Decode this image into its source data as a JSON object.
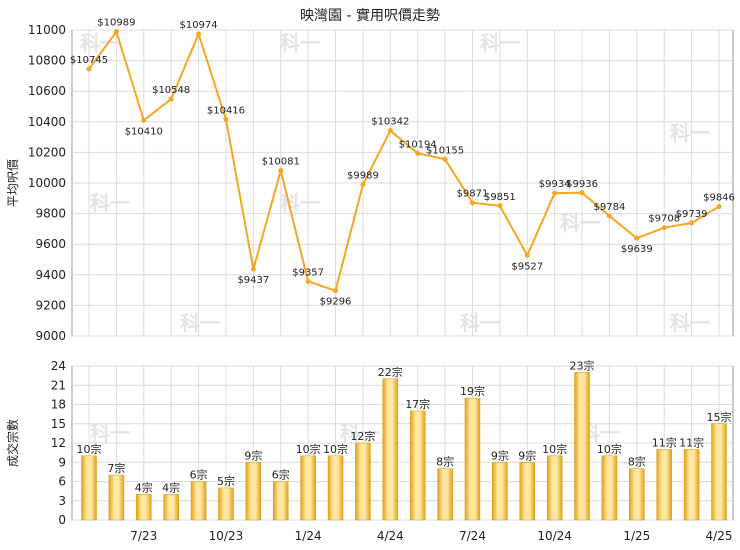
{
  "title": "映灣園 - 實用呎價走勢",
  "colors": {
    "line": "#f5a623",
    "bar_light": "#fde7a3",
    "bar_dark": "#e6a010",
    "grid": "#dcdcdc",
    "axis": "#999999"
  },
  "watermark": "科一",
  "chart_data": [
    {
      "type": "line",
      "ylabel": "平均呎價",
      "ylim": [
        9000,
        11000
      ],
      "yticks": [
        9000,
        9200,
        9400,
        9600,
        9800,
        10000,
        10200,
        10400,
        10600,
        10800,
        11000
      ],
      "values": [
        10745,
        10989,
        10410,
        10548,
        10974,
        10416,
        9437,
        10081,
        9357,
        9296,
        9989,
        10342,
        10194,
        10155,
        9871,
        9851,
        9527,
        9934,
        9936,
        9784,
        9639,
        9708,
        9739,
        9846
      ],
      "labels": [
        "$10745",
        "$10989",
        "$10410",
        "$10548",
        "$10974",
        "$10416",
        "$9437",
        "$10081",
        "$9357",
        "$9296",
        "$9989",
        "$10342",
        "$10194",
        "$10155",
        "$9871",
        "$9851",
        "$9527",
        "$9934",
        "$9936",
        "$9784",
        "$9639",
        "$9708",
        "$9739",
        "$9846"
      ]
    },
    {
      "type": "bar",
      "ylabel": "成交宗數",
      "ylim": [
        0,
        24
      ],
      "yticks": [
        0,
        3,
        6,
        9,
        12,
        15,
        18,
        21,
        24
      ],
      "values": [
        10,
        7,
        4,
        4,
        6,
        5,
        9,
        6,
        10,
        10,
        12,
        22,
        17,
        8,
        19,
        9,
        9,
        10,
        23,
        10,
        8,
        11,
        11,
        15
      ],
      "labels": [
        "10宗",
        "7宗",
        "4宗",
        "4宗",
        "6宗",
        "5宗",
        "9宗",
        "6宗",
        "10宗",
        "10宗",
        "12宗",
        "22宗",
        "17宗",
        "8宗",
        "19宗",
        "9宗",
        "9宗",
        "10宗",
        "23宗",
        "10宗",
        "8宗",
        "11宗",
        "11宗",
        "15宗"
      ],
      "xtick_labels": [
        "7/23",
        "10/23",
        "1/24",
        "4/24",
        "7/24",
        "10/24",
        "1/25",
        "4/25"
      ],
      "xtick_indices": [
        2,
        5,
        8,
        11,
        14,
        17,
        20,
        23
      ]
    }
  ]
}
